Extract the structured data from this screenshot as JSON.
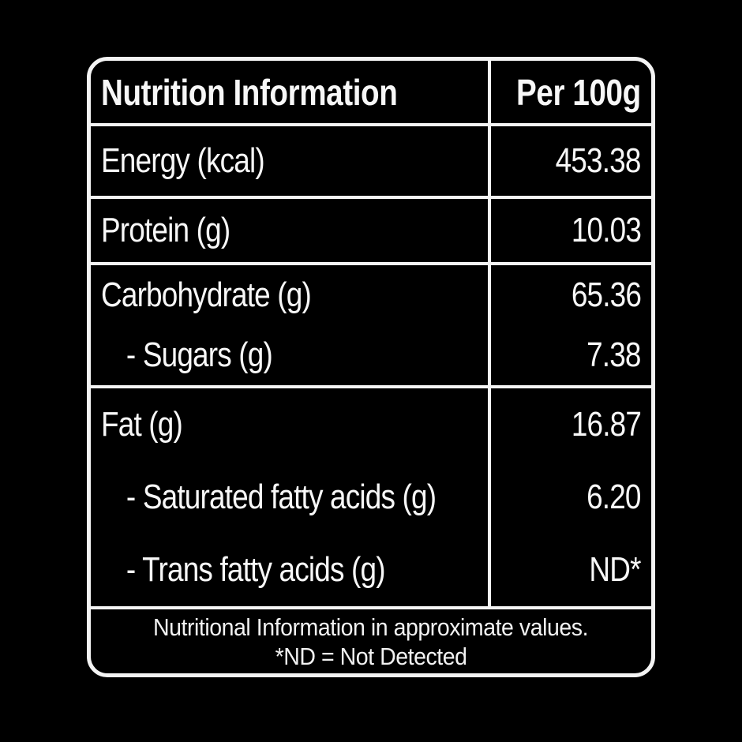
{
  "colors": {
    "background": "#000000",
    "border": "#f4f4f4",
    "text": "#f7f7f7"
  },
  "table": {
    "header": {
      "col1": "Nutrition Information",
      "col2": "Per 100g"
    },
    "sections": [
      {
        "rows": [
          {
            "label": "Energy (kcal)",
            "value": "453.38"
          }
        ]
      },
      {
        "rows": [
          {
            "label": "Protein (g)",
            "value": "10.03"
          }
        ]
      },
      {
        "rows": [
          {
            "label": "Carbohydrate (g)",
            "value": "65.36"
          },
          {
            "label": "- Sugars (g)",
            "value": "7.38"
          }
        ]
      },
      {
        "rows": [
          {
            "label": "Fat (g)",
            "value": "16.87"
          },
          {
            "label": "- Saturated fatty acids (g)",
            "value": "6.20"
          },
          {
            "label": "- Trans fatty acids (g)",
            "value": "ND*"
          }
        ]
      }
    ],
    "footer": {
      "line1": "Nutritional Information in approximate values.",
      "line2": "*ND = Not Detected"
    }
  }
}
